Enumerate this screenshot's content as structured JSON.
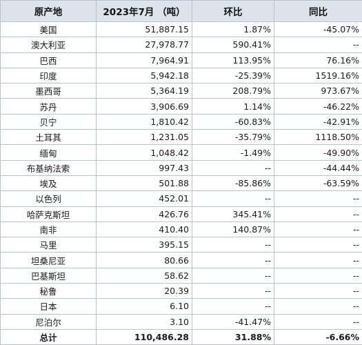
{
  "headers": [
    "原产地",
    "2023年7月 （吨）",
    "环比",
    "同比"
  ],
  "rows": [
    {
      "origin": "美国",
      "volume": "51,887.15",
      "mom": "1.87%",
      "yoy": "-45.07%"
    },
    {
      "origin": "澳大利亚",
      "volume": "27,978.77",
      "mom": "590.41%",
      "yoy": "--"
    },
    {
      "origin": "巴西",
      "volume": "7,964.91",
      "mom": "113.95%",
      "yoy": "76.16%"
    },
    {
      "origin": "印度",
      "volume": "5,942.18",
      "mom": "-25.39%",
      "yoy": "1519.16%"
    },
    {
      "origin": "墨西哥",
      "volume": "5,364.19",
      "mom": "208.79%",
      "yoy": "973.67%"
    },
    {
      "origin": "苏丹",
      "volume": "3,906.69",
      "mom": "1.14%",
      "yoy": "-46.22%"
    },
    {
      "origin": "贝宁",
      "volume": "1,810.42",
      "mom": "-60.83%",
      "yoy": "-42.91%"
    },
    {
      "origin": "土耳其",
      "volume": "1,231.05",
      "mom": "-35.79%",
      "yoy": "1118.50%"
    },
    {
      "origin": "缅甸",
      "volume": "1,048.42",
      "mom": "-1.49%",
      "yoy": "-49.90%"
    },
    {
      "origin": "布基纳法索",
      "volume": "997.43",
      "mom": "--",
      "yoy": "-44.44%"
    },
    {
      "origin": "埃及",
      "volume": "501.88",
      "mom": "-85.86%",
      "yoy": "-63.59%"
    },
    {
      "origin": "以色列",
      "volume": "452.01",
      "mom": "--",
      "yoy": "--"
    },
    {
      "origin": "哈萨克斯坦",
      "volume": "426.76",
      "mom": "345.41%",
      "yoy": "--"
    },
    {
      "origin": "南非",
      "volume": "410.40",
      "mom": "140.87%",
      "yoy": "--"
    },
    {
      "origin": "马里",
      "volume": "395.15",
      "mom": "--",
      "yoy": "--"
    },
    {
      "origin": "坦桑尼亚",
      "volume": "80.66",
      "mom": "--",
      "yoy": "--"
    },
    {
      "origin": "巴基斯坦",
      "volume": "58.62",
      "mom": "--",
      "yoy": "--"
    },
    {
      "origin": "秘鲁",
      "volume": "20.39",
      "mom": "--",
      "yoy": "--"
    },
    {
      "origin": "日本",
      "volume": "6.10",
      "mom": "--",
      "yoy": "--"
    },
    {
      "origin": "尼泊尔",
      "volume": "3.10",
      "mom": "-41.47%",
      "yoy": "--"
    }
  ],
  "total": {
    "origin": "总计",
    "volume": "110,486.28",
    "mom": "31.88%",
    "yoy": "-6.66%"
  }
}
